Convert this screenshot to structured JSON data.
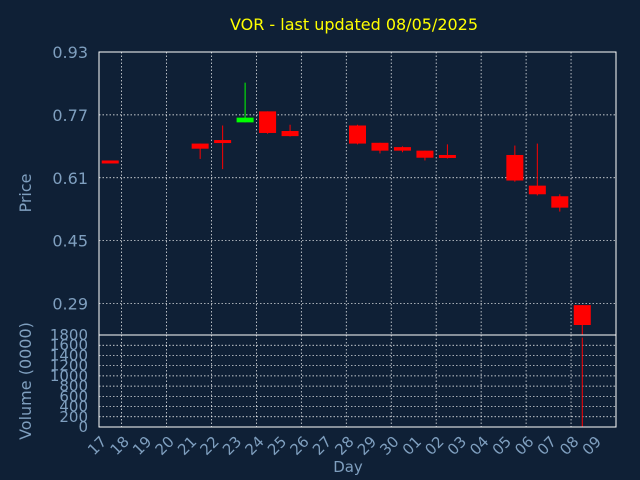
{
  "colors": {
    "background": "#0f2036",
    "title": "#ffff00",
    "axis_text": "#7f9fbf",
    "frame": "#ffffff",
    "grid": "#ffffff",
    "down": "#ff0000",
    "up": "#00ff00"
  },
  "chart_data": [
    {
      "type": "candlestick",
      "title": "VOR - last updated 08/05/2025",
      "ylabel": "Price",
      "ylim": [
        0.21,
        0.93
      ],
      "yticks": [
        "0.93",
        "0.77",
        "0.61",
        "0.45",
        "0.29"
      ],
      "x": [
        "17",
        "18",
        "19",
        "20",
        "21",
        "22",
        "23",
        "24",
        "25",
        "26",
        "27",
        "28",
        "29",
        "30",
        "01",
        "02",
        "03",
        "04",
        "05",
        "06",
        "07",
        "08",
        "09"
      ],
      "candles": [
        {
          "x": "17",
          "open": 0.654,
          "high": 0.654,
          "low": 0.652,
          "close": 0.652
        },
        {
          "x": "21",
          "open": 0.697,
          "high": 0.697,
          "low": 0.658,
          "close": 0.684
        },
        {
          "x": "22",
          "open": 0.706,
          "high": 0.743,
          "low": 0.632,
          "close": 0.7
        },
        {
          "x": "23",
          "open": 0.751,
          "high": 0.852,
          "low": 0.751,
          "close": 0.763
        },
        {
          "x": "24",
          "open": 0.779,
          "high": 0.779,
          "low": 0.722,
          "close": 0.724
        },
        {
          "x": "25",
          "open": 0.729,
          "high": 0.745,
          "low": 0.715,
          "close": 0.716
        },
        {
          "x": "28",
          "open": 0.743,
          "high": 0.745,
          "low": 0.695,
          "close": 0.697
        },
        {
          "x": "29",
          "open": 0.699,
          "high": 0.699,
          "low": 0.672,
          "close": 0.679
        },
        {
          "x": "30",
          "open": 0.688,
          "high": 0.69,
          "low": 0.675,
          "close": 0.679
        },
        {
          "x": "01",
          "open": 0.679,
          "high": 0.679,
          "low": 0.654,
          "close": 0.661
        },
        {
          "x": "02",
          "open": 0.668,
          "high": 0.695,
          "low": 0.659,
          "close": 0.661
        },
        {
          "x": "05",
          "open": 0.668,
          "high": 0.692,
          "low": 0.6,
          "close": 0.603
        },
        {
          "x": "06",
          "open": 0.59,
          "high": 0.697,
          "low": 0.565,
          "close": 0.568
        },
        {
          "x": "07",
          "open": 0.563,
          "high": 0.568,
          "low": 0.524,
          "close": 0.534
        },
        {
          "x": "08",
          "open": 0.286,
          "high": 0.286,
          "low": 0.16,
          "close": 0.16
        }
      ]
    },
    {
      "type": "bar",
      "xlabel": "Day",
      "ylabel": "Volume (0000)",
      "ylim": [
        0,
        1800
      ],
      "yticks": [
        "1800",
        "1600",
        "1400",
        "1200",
        "1000",
        "800",
        "600",
        "400",
        "200",
        "0"
      ],
      "x": [
        "17",
        "18",
        "19",
        "20",
        "21",
        "22",
        "23",
        "24",
        "25",
        "26",
        "27",
        "28",
        "29",
        "30",
        "01",
        "02",
        "03",
        "04",
        "05",
        "06",
        "07",
        "08",
        "09"
      ],
      "values": [
        {
          "x": "21",
          "value": 3
        },
        {
          "x": "22",
          "value": 5
        },
        {
          "x": "23",
          "value": 4
        },
        {
          "x": "24",
          "value": 4
        },
        {
          "x": "25",
          "value": 2
        },
        {
          "x": "28",
          "value": 3
        },
        {
          "x": "29",
          "value": 2
        },
        {
          "x": "30",
          "value": 2
        },
        {
          "x": "01",
          "value": 2
        },
        {
          "x": "02",
          "value": 3
        },
        {
          "x": "05",
          "value": 8
        },
        {
          "x": "06",
          "value": 5
        },
        {
          "x": "07",
          "value": 4
        },
        {
          "x": "08",
          "value": 1750
        }
      ]
    }
  ]
}
